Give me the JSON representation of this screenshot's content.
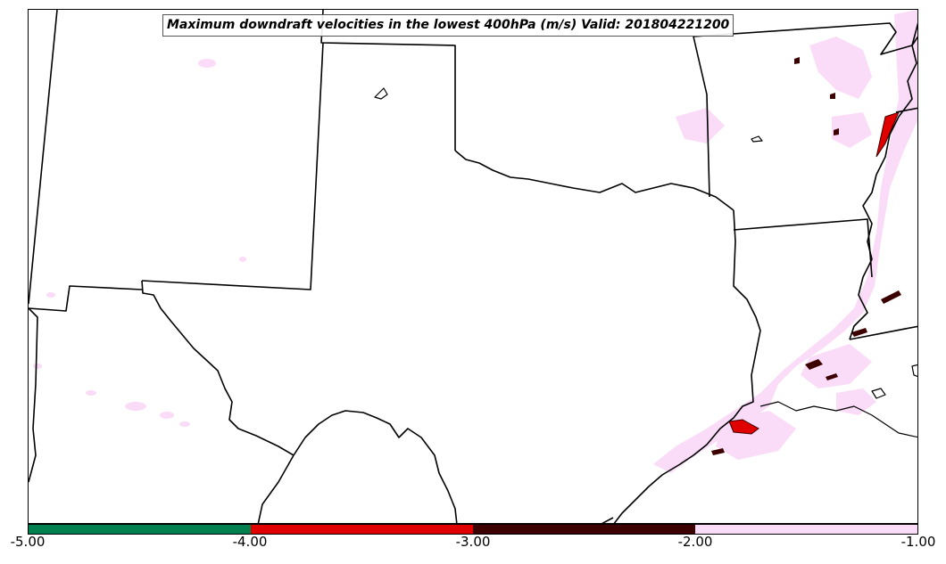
{
  "title": "Maximum downdraft velocities in the lowest 400hPa (m/s) Valid: 201804221200",
  "colorbar": {
    "bins": [
      {
        "from": -5.0,
        "to": -4.0,
        "color": "#007f4f"
      },
      {
        "from": -4.0,
        "to": -3.0,
        "color": "#e00000"
      },
      {
        "from": -3.0,
        "to": -2.0,
        "color": "#3d0000"
      },
      {
        "from": -2.0,
        "to": -1.0,
        "color": "#fadbf8"
      }
    ],
    "tick_labels": [
      "-5.00",
      "-4.00",
      "-3.00",
      "-2.00",
      "-1.00"
    ]
  },
  "colors": {
    "state_border": "#000000",
    "light_shade": "#fadbf8",
    "dark_shade": "#3d0000",
    "red_shade": "#e00000"
  }
}
